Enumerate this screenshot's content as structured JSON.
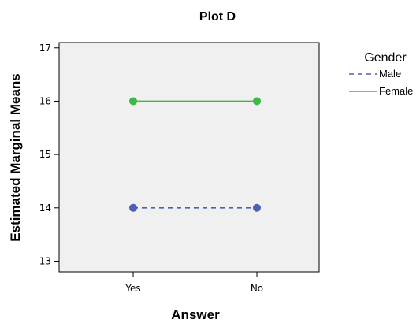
{
  "chart_data": {
    "type": "line",
    "title": "Plot D",
    "xlabel": "Answer",
    "ylabel": "Estimated Marginal Means",
    "categories": [
      "Yes",
      "No"
    ],
    "ylim": [
      12.8,
      17.1
    ],
    "yticks": [
      13,
      14,
      15,
      16,
      17
    ],
    "grid": false,
    "legend_title": "Gender",
    "legend_position": "right",
    "series": [
      {
        "name": "Male",
        "values": [
          14,
          14
        ],
        "color": "#4a5fb5",
        "dash": "dashed"
      },
      {
        "name": "Female",
        "values": [
          16,
          16
        ],
        "color": "#3cb846",
        "dash": "solid"
      }
    ]
  }
}
